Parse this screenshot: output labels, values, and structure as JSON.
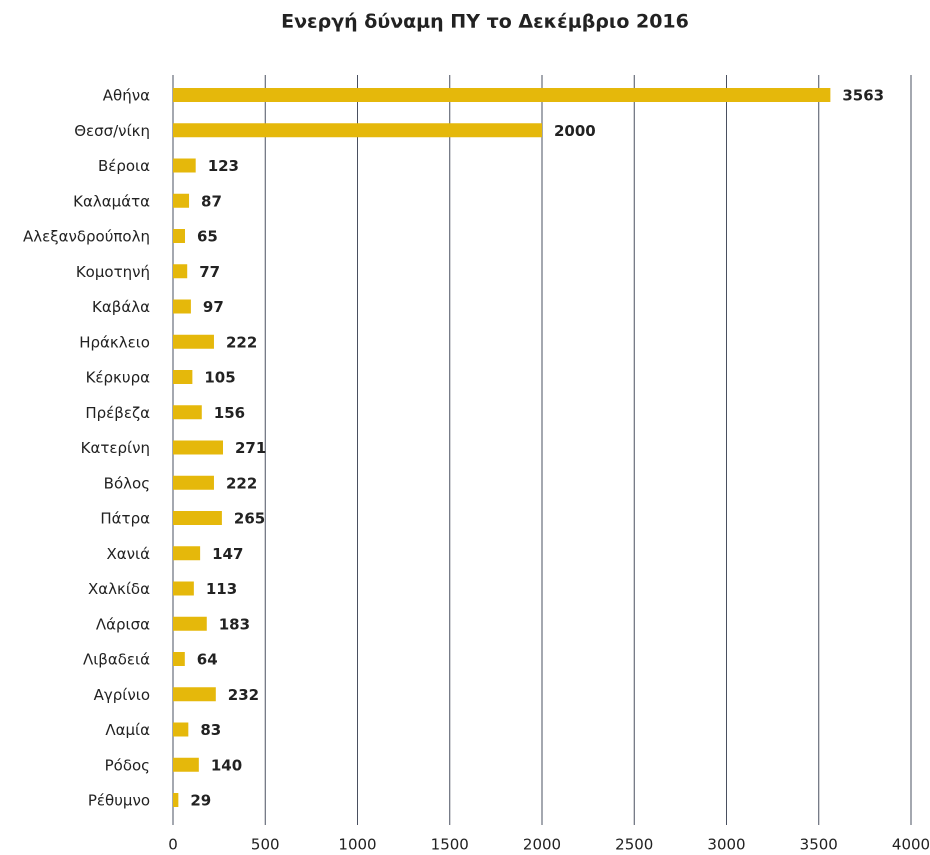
{
  "chart_data": {
    "type": "bar",
    "orientation": "horizontal",
    "title": "Ενεργή δύναμη ΠΥ το Δεκέμβριο 2016",
    "categories": [
      "Αθήνα",
      "Θεσσ/νίκη",
      "Βέροια",
      "Καλαμάτα",
      "Αλεξανδρούπολη",
      "Κομοτηνή",
      "Καβάλα",
      "Ηράκλειο",
      "Κέρκυρα",
      "Πρέβεζα",
      "Κατερίνη",
      "Βόλος",
      "Πάτρα",
      "Χανιά",
      "Χαλκίδα",
      "Λάρισα",
      "Λιβαδειά",
      "Αγρίνιο",
      "Λαμία",
      "Ρόδος",
      "Ρέθυμνο"
    ],
    "values": [
      3563,
      2000,
      123,
      87,
      65,
      77,
      97,
      222,
      105,
      156,
      271,
      222,
      265,
      147,
      113,
      183,
      64,
      232,
      83,
      140,
      29
    ],
    "color": "#e5b80b",
    "xlim": [
      0,
      4000
    ],
    "xticks": [
      0,
      500,
      1000,
      1500,
      2000,
      2500,
      3000,
      3500,
      4000
    ],
    "grid": true
  }
}
